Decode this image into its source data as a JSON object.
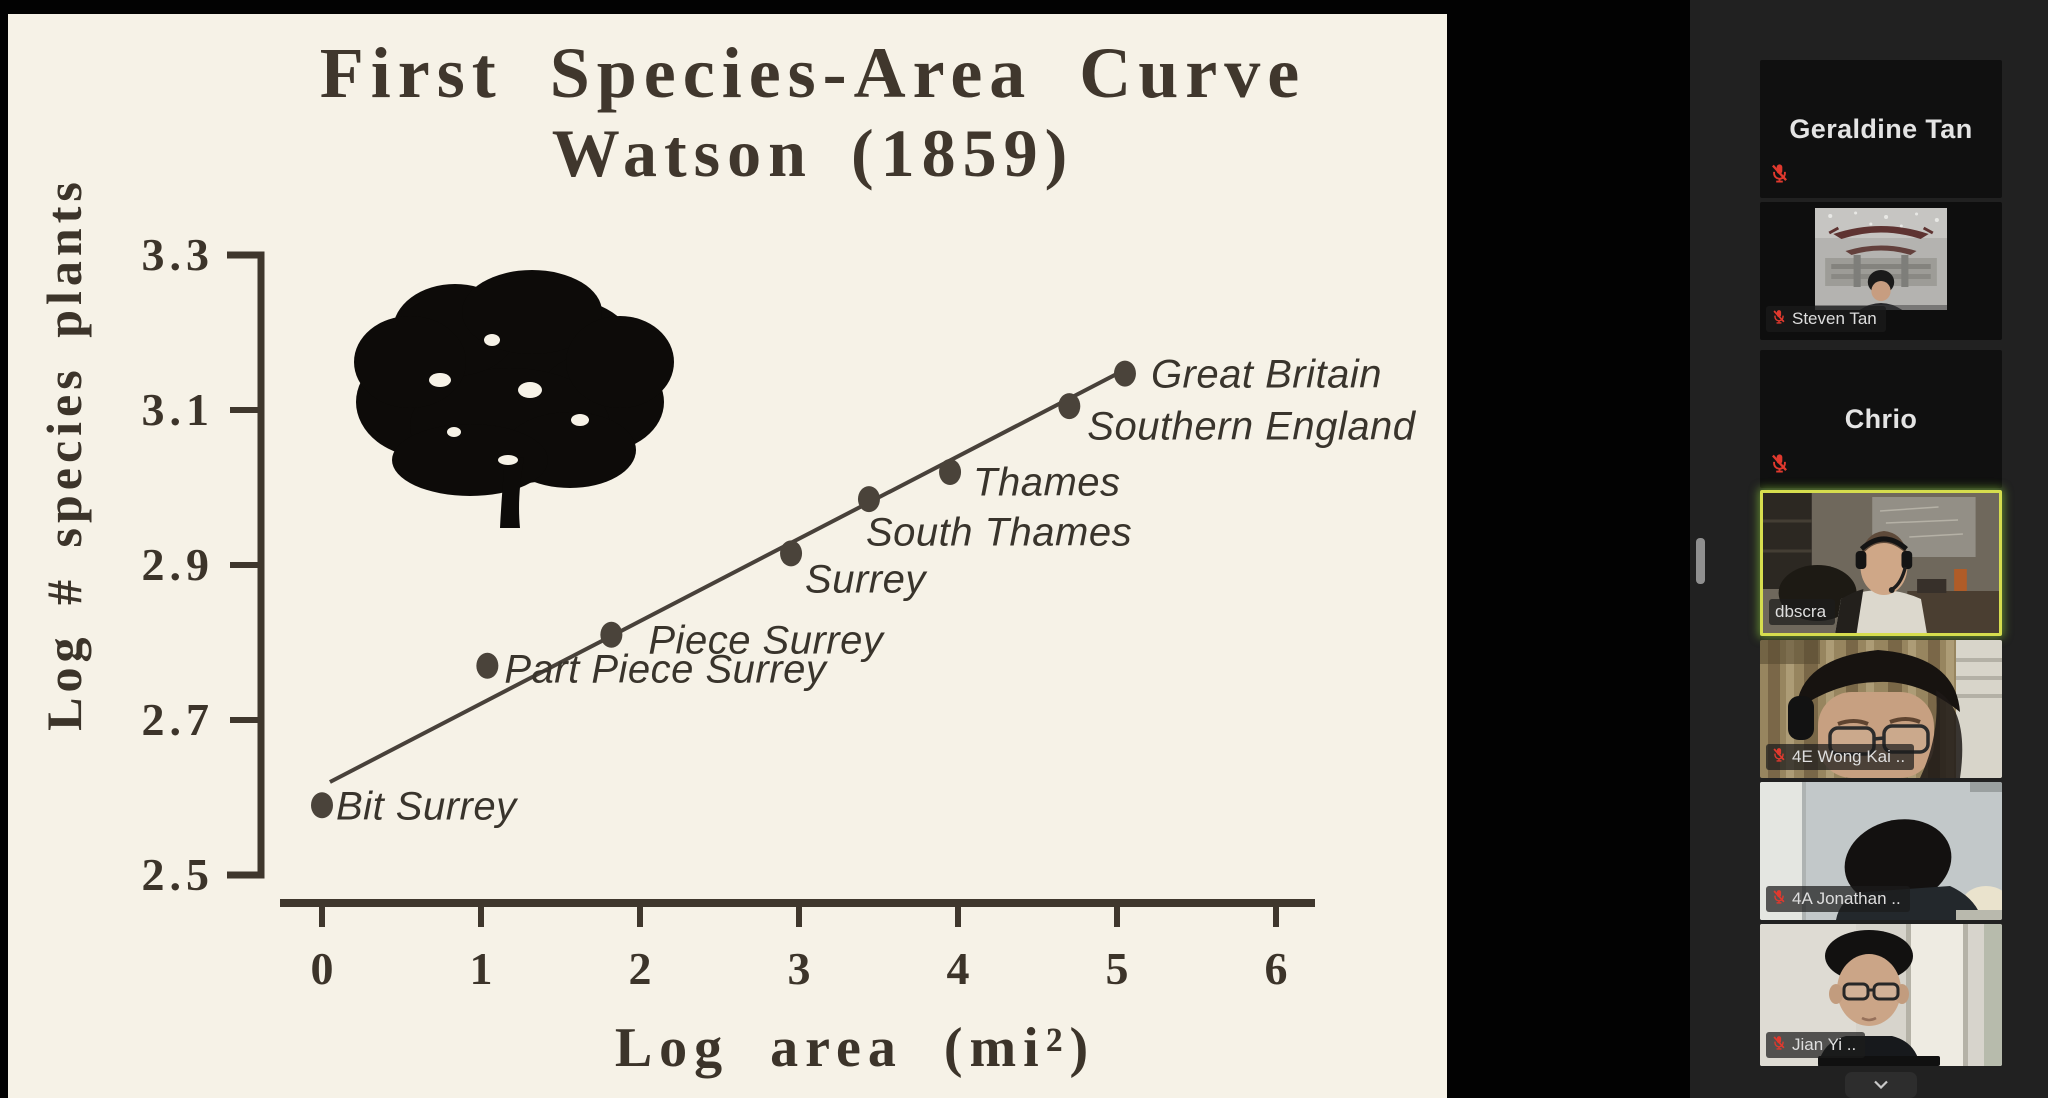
{
  "chart_data": {
    "type": "scatter",
    "title": "First Species-Area Curve",
    "subtitle": "Watson (1859)",
    "xlabel": "Log area (mi²)",
    "ylabel": "Log # species plants",
    "xlim": [
      0,
      6
    ],
    "ylim": [
      2.5,
      3.3
    ],
    "x_ticks": [
      "0",
      "1",
      "2",
      "3",
      "4",
      "5",
      "6"
    ],
    "y_ticks": [
      "3.3",
      "3.1",
      "2.9",
      "2.7",
      "2.5"
    ],
    "grid": false,
    "legend": "none",
    "points": [
      {
        "label": "Bit Surrey",
        "x": 0.0,
        "y": 2.59
      },
      {
        "label": "Part Piece Surrey",
        "x": 1.04,
        "y": 2.77
      },
      {
        "label": "Piece Surrey",
        "x": 1.82,
        "y": 2.81
      },
      {
        "label": "Surrey",
        "x": 2.95,
        "y": 2.915
      },
      {
        "label": "South Thames",
        "x": 3.44,
        "y": 2.985
      },
      {
        "label": "Thames",
        "x": 3.95,
        "y": 3.02
      },
      {
        "label": "Southern England",
        "x": 4.7,
        "y": 3.105
      },
      {
        "label": "Great Britain",
        "x": 5.05,
        "y": 3.147
      }
    ],
    "trendline": {
      "x1": 0.05,
      "y1": 2.62,
      "x2": 5.05,
      "y2": 3.152
    }
  },
  "sidebar": {
    "participants": [
      {
        "name": "Geraldine Tan",
        "display": "name",
        "muted": true
      },
      {
        "name": "Steven Tan",
        "display": "video",
        "scene": "gate",
        "muted": true,
        "inset": true
      },
      {
        "name": "Chrio",
        "display": "name",
        "muted": true
      },
      {
        "name": "dbscra",
        "display": "video",
        "scene": "room",
        "muted": false,
        "active": true
      },
      {
        "name": "4E Wong Kai ..",
        "display": "video",
        "scene": "curtain",
        "muted": true
      },
      {
        "name": "4A Jonathan ..",
        "display": "video",
        "scene": "desk",
        "muted": true
      },
      {
        "name": "Jian Yi ..",
        "display": "video",
        "scene": "bright",
        "muted": true
      }
    ],
    "collapse_control": "chevron-down"
  },
  "colors": {
    "slide_bg": "#f6f2e7",
    "ink": "#3f372d",
    "panel_bg": "#212121",
    "active_border": "#d6dd4e",
    "muted_mic_red": "#e0392e"
  }
}
